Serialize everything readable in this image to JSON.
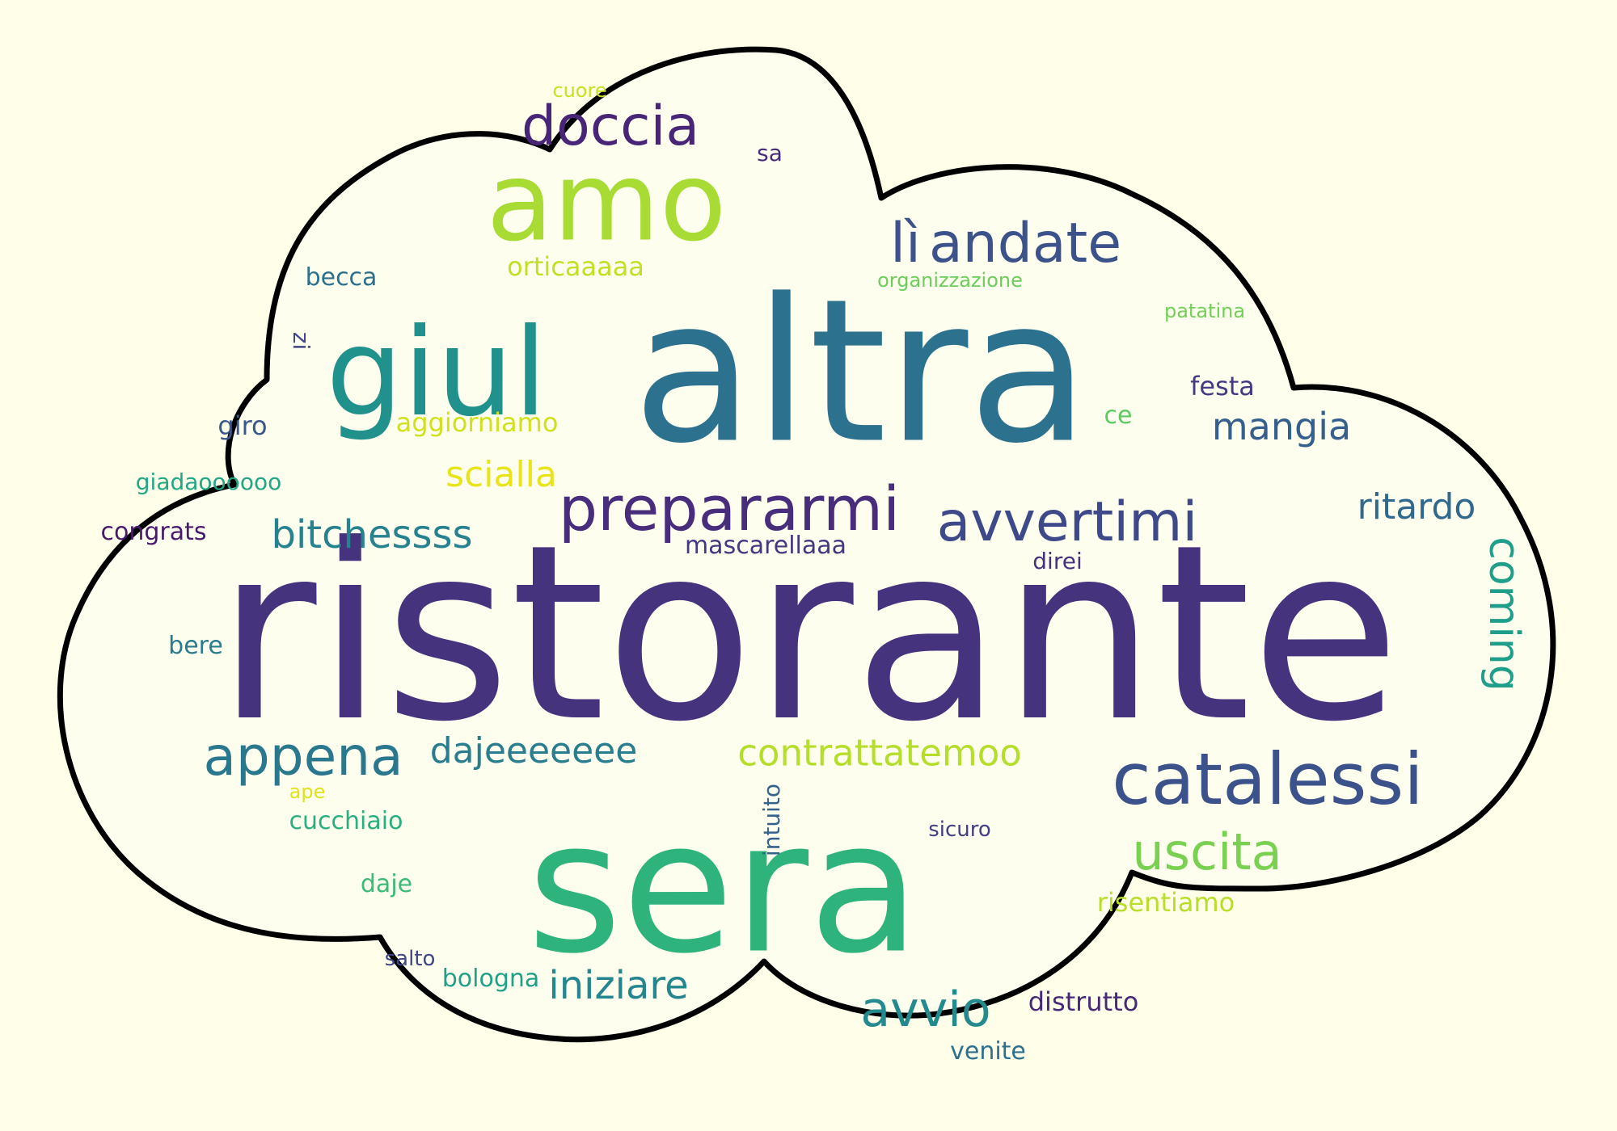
{
  "words": [
    {
      "id": "ristorante",
      "text": "ristorante",
      "color": "#46337e"
    },
    {
      "id": "altra",
      "text": "altra",
      "color": "#2c728e"
    },
    {
      "id": "sera",
      "text": "sera",
      "color": "#2eb37c"
    },
    {
      "id": "amo",
      "text": "amo",
      "color": "#a8db34"
    },
    {
      "id": "giul",
      "text": "giul",
      "color": "#21918c"
    },
    {
      "id": "catalessi",
      "text": "catalessi",
      "color": "#3b528b"
    },
    {
      "id": "prepararmi",
      "text": "prepararmi",
      "color": "#472d7b"
    },
    {
      "id": "andate",
      "text": "andate",
      "color": "#3b528b"
    },
    {
      "id": "li",
      "text": "lì",
      "color": "#3b528b"
    },
    {
      "id": "doccia",
      "text": "doccia",
      "color": "#482576"
    },
    {
      "id": "avvertimi",
      "text": "avvertimi",
      "color": "#3e4989"
    },
    {
      "id": "appena",
      "text": "appena",
      "color": "#2a788e"
    },
    {
      "id": "uscita",
      "text": "uscita",
      "color": "#7ad151"
    },
    {
      "id": "contrattatemoo",
      "text": "contrattatemoo",
      "color": "#b5de2b"
    },
    {
      "id": "avvio",
      "text": "avvio",
      "color": "#238a8d"
    },
    {
      "id": "bitchessss",
      "text": "bitchessss",
      "color": "#26828e"
    },
    {
      "id": "dajeeeeeee",
      "text": "dajeeeeeee",
      "color": "#287d8e"
    },
    {
      "id": "iniziare",
      "text": "iniziare",
      "color": "#24868e"
    },
    {
      "id": "coming",
      "text": "coming",
      "color": "#1f9e89"
    },
    {
      "id": "ritardo",
      "text": "ritardo",
      "color": "#31688e"
    },
    {
      "id": "mangia",
      "text": "mangia",
      "color": "#355f8d"
    },
    {
      "id": "scialla",
      "text": "scialla",
      "color": "#e8e419"
    },
    {
      "id": "orticaaaaa",
      "text": "orticaaaaa",
      "color": "#c2df23"
    },
    {
      "id": "aggiorniamo",
      "text": "aggiorniamo",
      "color": "#d0e11c"
    },
    {
      "id": "mascarellaaa",
      "text": "mascarellaaa",
      "color": "#453781"
    },
    {
      "id": "giadaoooooo",
      "text": "giadaoooooo",
      "color": "#22a785"
    },
    {
      "id": "congrats",
      "text": "congrats",
      "color": "#481a6c"
    },
    {
      "id": "becca",
      "text": "becca",
      "color": "#2d708e"
    },
    {
      "id": "zi",
      "text": "zi",
      "color": "#414487"
    },
    {
      "id": "giro",
      "text": "giro",
      "color": "#38588c"
    },
    {
      "id": "bere",
      "text": "bere",
      "color": "#297b8e"
    },
    {
      "id": "ape",
      "text": "ape",
      "color": "#dde318"
    },
    {
      "id": "cucchiaio",
      "text": "cucchiaio",
      "color": "#29af7f"
    },
    {
      "id": "daje",
      "text": "daje",
      "color": "#3bbb75"
    },
    {
      "id": "salto",
      "text": "salto",
      "color": "#3f4788"
    },
    {
      "id": "bologna",
      "text": "bologna",
      "color": "#1fa188"
    },
    {
      "id": "distrutto",
      "text": "distrutto",
      "color": "#482878"
    },
    {
      "id": "venite",
      "text": "venite",
      "color": "#2d708e"
    },
    {
      "id": "risentiamo",
      "text": "risentiamo",
      "color": "#b8de29"
    },
    {
      "id": "sicuro",
      "text": "sicuro",
      "color": "#433e85"
    },
    {
      "id": "intuito",
      "text": "intuito",
      "color": "#33638d"
    },
    {
      "id": "direi",
      "text": "direi",
      "color": "#46327e"
    },
    {
      "id": "ce",
      "text": "ce",
      "color": "#5ec962"
    },
    {
      "id": "festa",
      "text": "festa",
      "color": "#443a83"
    },
    {
      "id": "patatina",
      "text": "patatina",
      "color": "#73d056"
    },
    {
      "id": "organizzazione",
      "text": "organizzazione",
      "color": "#6ccd5a"
    },
    {
      "id": "sa",
      "text": "sa",
      "color": "#472c7a"
    },
    {
      "id": "cuore",
      "text": "cuore",
      "color": "#c8e020"
    }
  ]
}
